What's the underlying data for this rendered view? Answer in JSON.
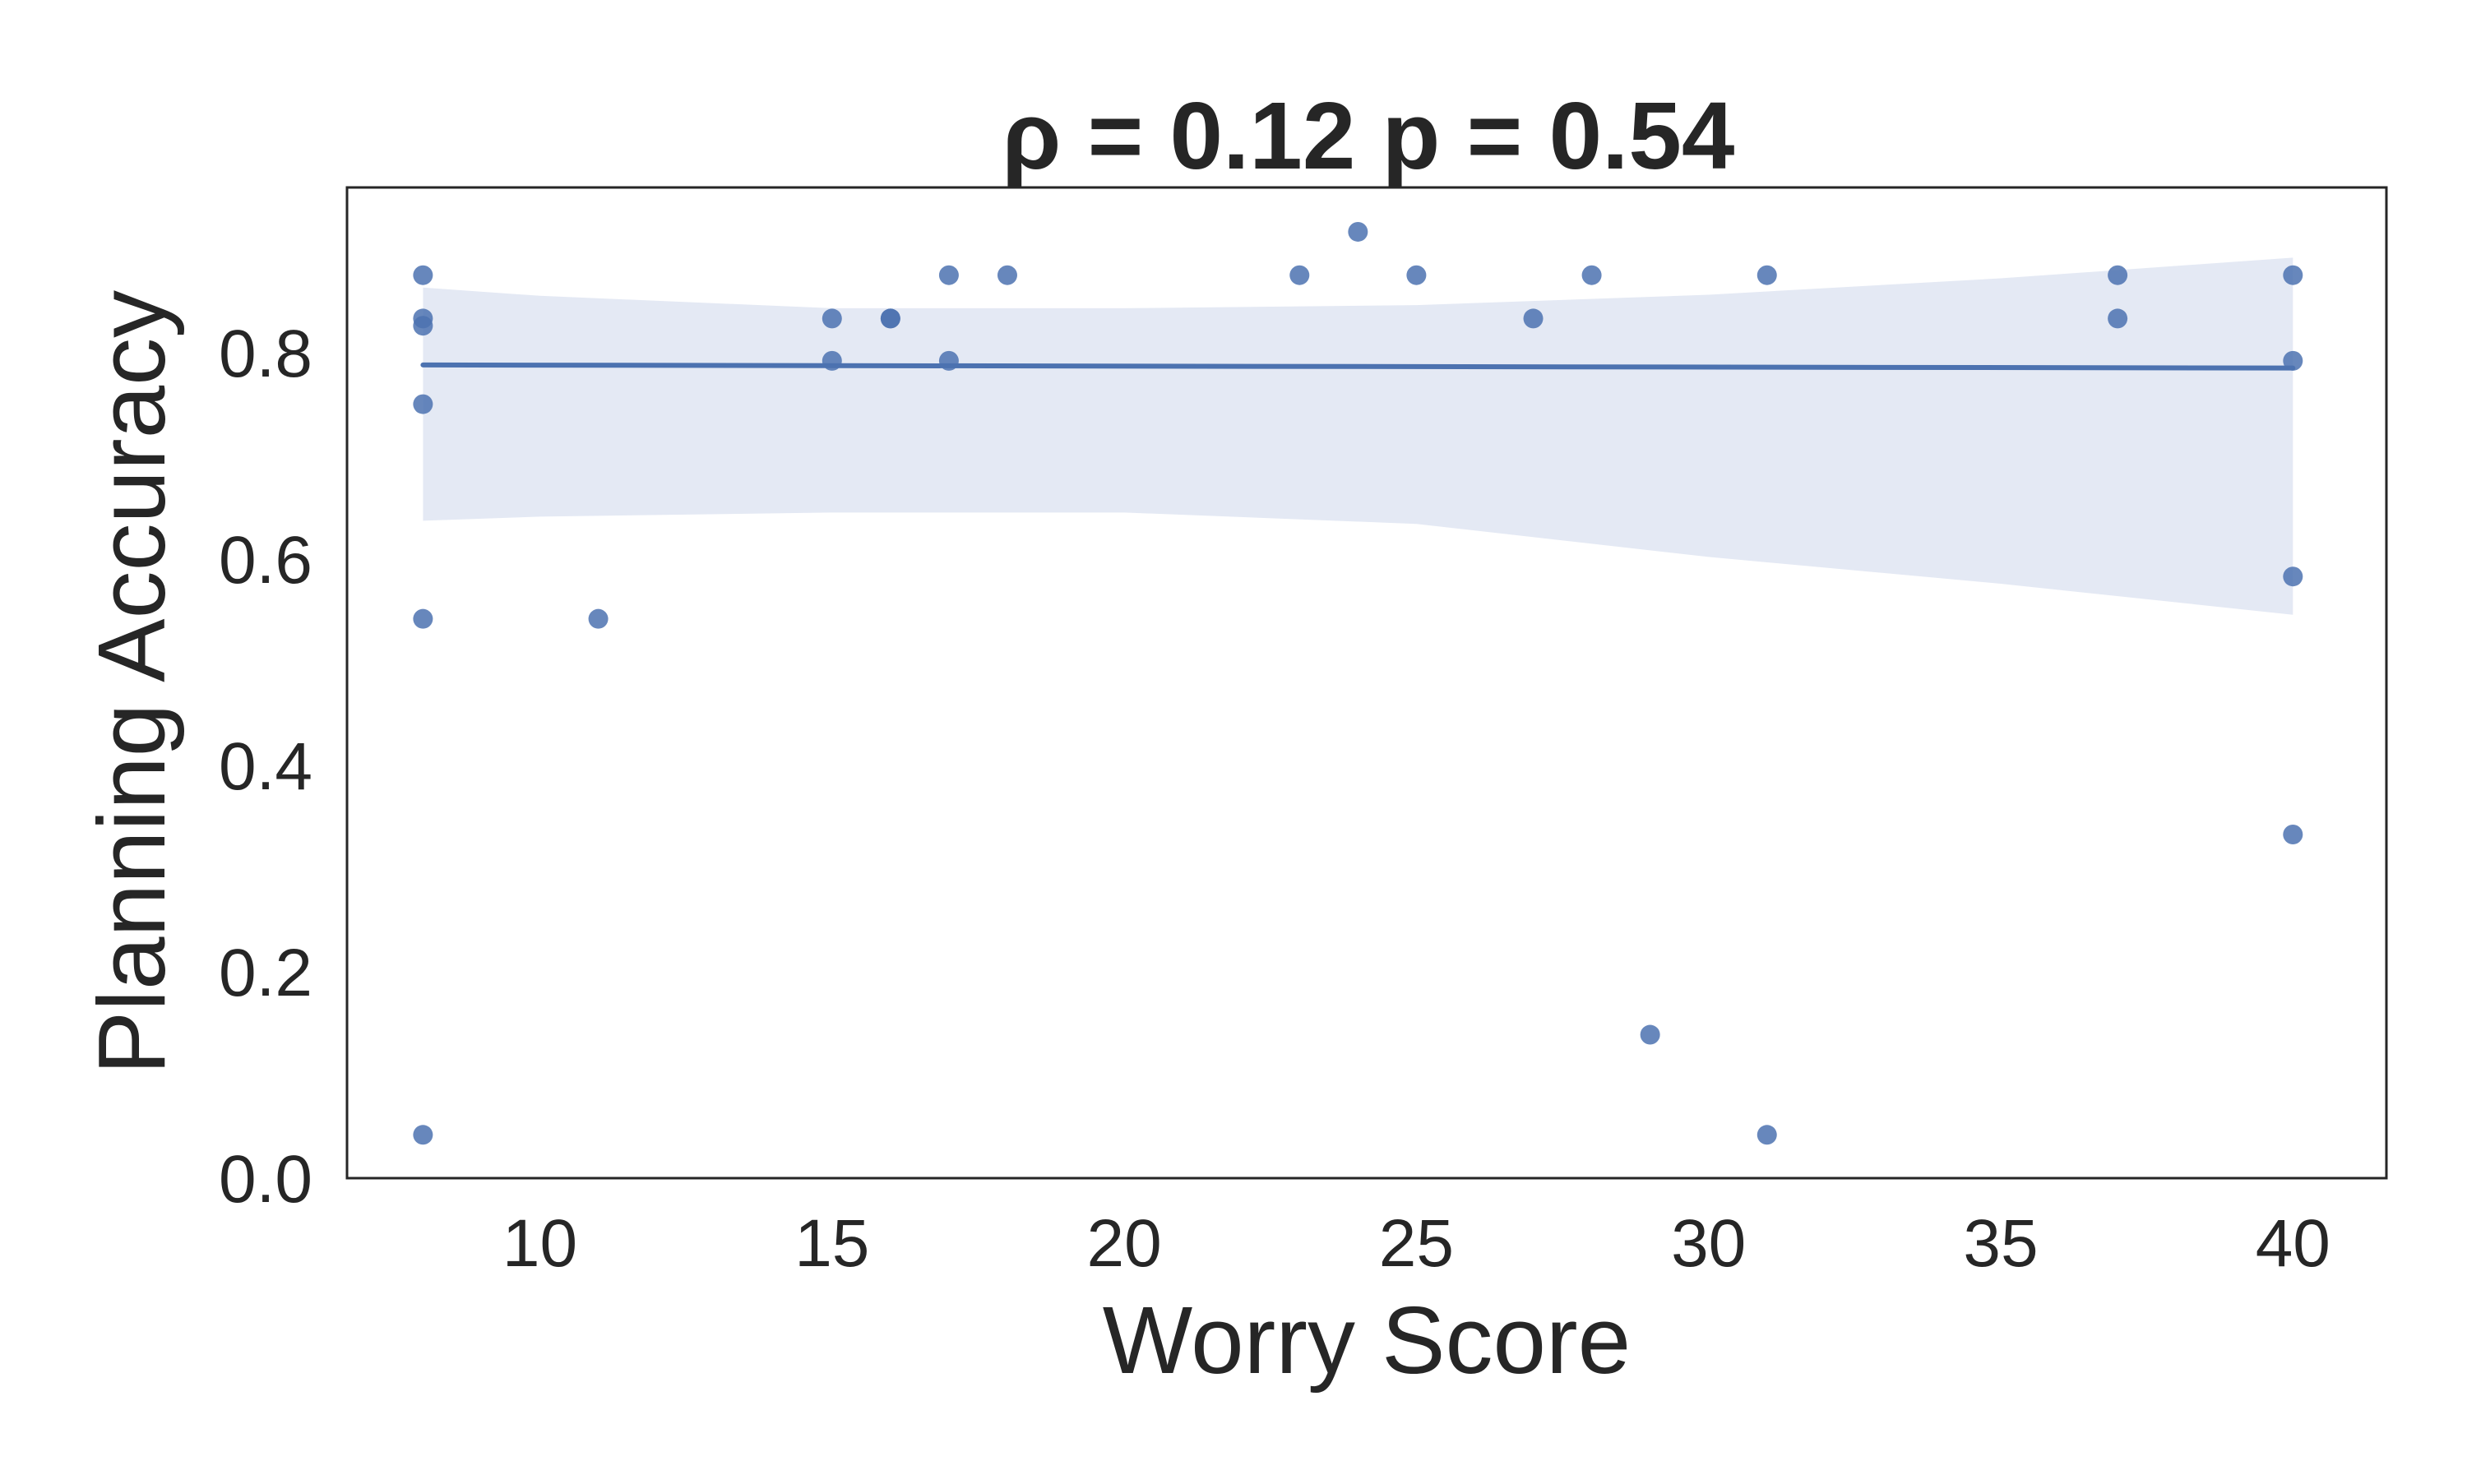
{
  "chart_data": {
    "type": "scatter",
    "title": "ρ = 0.12 p = 0.54",
    "xlabel": "Worry Score",
    "ylabel": "Planning Accuracy",
    "xlim": [
      6.7,
      41.6
    ],
    "ylim": [
      0.0,
      0.96
    ],
    "xticks": [
      10,
      15,
      20,
      25,
      30,
      35,
      40
    ],
    "yticks": [
      0.0,
      0.2,
      0.4,
      0.6,
      0.8
    ],
    "ytick_labels": [
      "0.0",
      "0.2",
      "0.4",
      "0.6",
      "0.8"
    ],
    "grid": false,
    "legend": "none",
    "colors": {
      "points": "#4c72b0",
      "line": "#4c72b0",
      "band": "#e4e9f4",
      "axes": "#262626"
    },
    "points": [
      {
        "x": 8,
        "y": 0.875
      },
      {
        "x": 8,
        "y": 0.833
      },
      {
        "x": 8,
        "y": 0.826
      },
      {
        "x": 8,
        "y": 0.75
      },
      {
        "x": 8,
        "y": 0.542
      },
      {
        "x": 8,
        "y": 0.042
      },
      {
        "x": 11,
        "y": 0.542
      },
      {
        "x": 15,
        "y": 0.833
      },
      {
        "x": 15,
        "y": 0.792
      },
      {
        "x": 16,
        "y": 0.833
      },
      {
        "x": 16,
        "y": 0.833
      },
      {
        "x": 17,
        "y": 0.875
      },
      {
        "x": 17,
        "y": 0.792
      },
      {
        "x": 18,
        "y": 0.875
      },
      {
        "x": 23,
        "y": 0.875
      },
      {
        "x": 24,
        "y": 0.917
      },
      {
        "x": 25,
        "y": 0.875
      },
      {
        "x": 27,
        "y": 0.833
      },
      {
        "x": 28,
        "y": 0.875
      },
      {
        "x": 29,
        "y": 0.139
      },
      {
        "x": 31,
        "y": 0.875
      },
      {
        "x": 31,
        "y": 0.042
      },
      {
        "x": 37,
        "y": 0.875
      },
      {
        "x": 37,
        "y": 0.833
      },
      {
        "x": 40,
        "y": 0.875
      },
      {
        "x": 40,
        "y": 0.792
      },
      {
        "x": 40,
        "y": 0.583
      },
      {
        "x": 40,
        "y": 0.333
      }
    ],
    "regression": {
      "x": [
        8,
        40
      ],
      "y": [
        0.788,
        0.785
      ]
    },
    "confidence_band": {
      "x": [
        8,
        10,
        15,
        20,
        25,
        30,
        35,
        40
      ],
      "upper": [
        0.863,
        0.855,
        0.843,
        0.843,
        0.846,
        0.856,
        0.872,
        0.892
      ],
      "lower": [
        0.637,
        0.641,
        0.645,
        0.645,
        0.634,
        0.602,
        0.576,
        0.546
      ]
    }
  }
}
